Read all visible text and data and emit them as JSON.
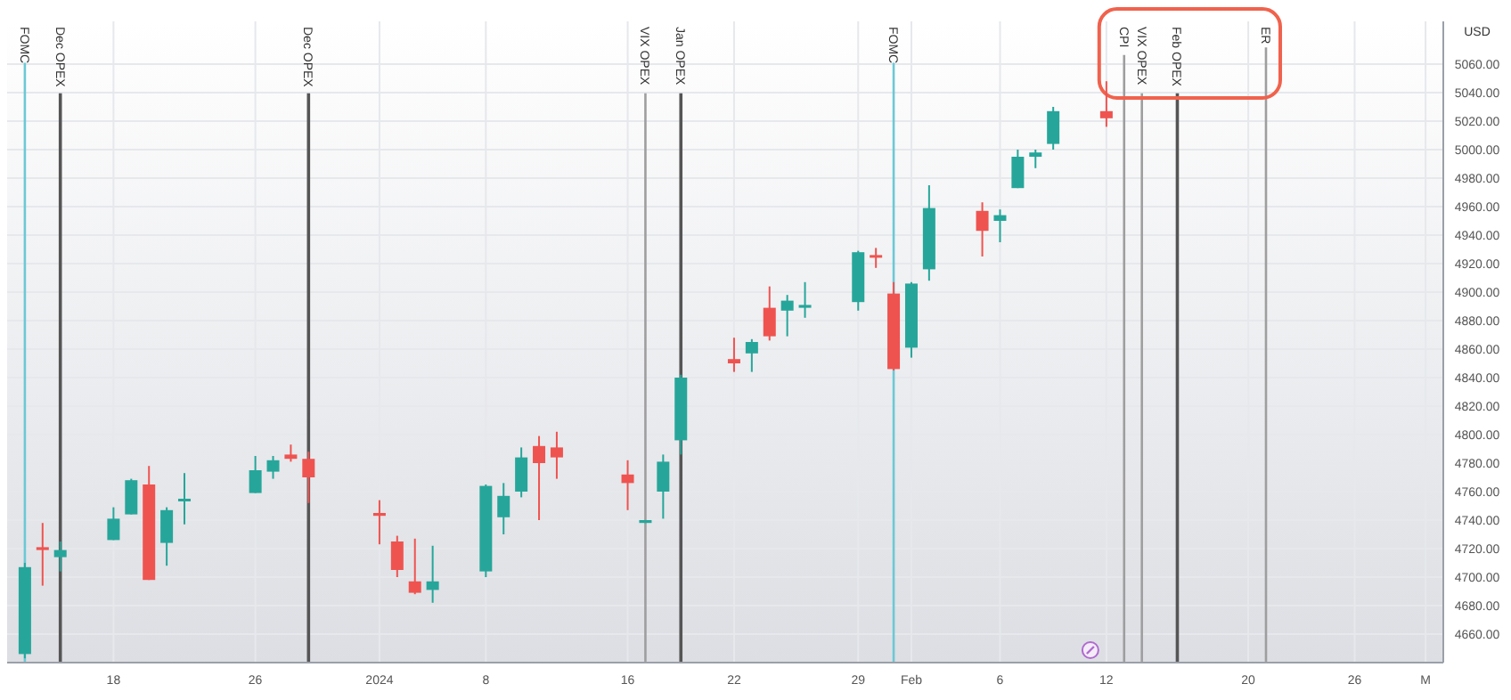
{
  "chart_data": {
    "type": "candlestick",
    "ylabel": "USD",
    "x": [
      "2023-12-13",
      "2023-12-14",
      "2023-12-15",
      "2023-12-18",
      "2023-12-19",
      "2023-12-20",
      "2023-12-21",
      "2023-12-22",
      "2023-12-26",
      "2023-12-27",
      "2023-12-28",
      "2023-12-29",
      "2024-01-02",
      "2024-01-03",
      "2024-01-04",
      "2024-01-05",
      "2024-01-08",
      "2024-01-09",
      "2024-01-10",
      "2024-01-11",
      "2024-01-12",
      "2024-01-16",
      "2024-01-17",
      "2024-01-18",
      "2024-01-19",
      "2024-01-22",
      "2024-01-23",
      "2024-01-24",
      "2024-01-25",
      "2024-01-26",
      "2024-01-29",
      "2024-01-30",
      "2024-01-31",
      "2024-02-01",
      "2024-02-02",
      "2024-02-05",
      "2024-02-06",
      "2024-02-07",
      "2024-02-08",
      "2024-02-09",
      "2024-02-12"
    ],
    "ohlc": [
      [
        4646,
        4710,
        4643,
        4707
      ],
      [
        4721,
        4738,
        4694,
        4719
      ],
      [
        4714,
        4725,
        4704,
        4719
      ],
      [
        4726,
        4749,
        4726,
        4741
      ],
      [
        4744,
        4769,
        4744,
        4768
      ],
      [
        4765,
        4778,
        4698,
        4698
      ],
      [
        4724,
        4749,
        4708,
        4747
      ],
      [
        4754,
        4773,
        4737,
        4755
      ],
      [
        4759,
        4785,
        4759,
        4775
      ],
      [
        4774,
        4785,
        4769,
        4782
      ],
      [
        4786,
        4793,
        4781,
        4783
      ],
      [
        4783,
        4788,
        4752,
        4770
      ],
      [
        4745,
        4754,
        4723,
        4743
      ],
      [
        4725,
        4729,
        4700,
        4705
      ],
      [
        4697,
        4727,
        4688,
        4689
      ],
      [
        4691,
        4722,
        4682,
        4697
      ],
      [
        4704,
        4765,
        4700,
        4764
      ],
      [
        4742,
        4766,
        4730,
        4757
      ],
      [
        4760,
        4791,
        4756,
        4784
      ],
      [
        4792,
        4799,
        4740,
        4780
      ],
      [
        4791,
        4802,
        4769,
        4784
      ],
      [
        4772,
        4782,
        4747,
        4766
      ],
      [
        4738,
        4740,
        4738,
        4740
      ],
      [
        4760,
        4786,
        4741,
        4781
      ],
      [
        4796,
        4842,
        4786,
        4840
      ],
      [
        4853,
        4868,
        4844,
        4850
      ],
      [
        4857,
        4867,
        4844,
        4865
      ],
      [
        4889,
        4904,
        4866,
        4869
      ],
      [
        4887,
        4898,
        4869,
        4894
      ],
      [
        4889,
        4907,
        4882,
        4891
      ],
      [
        4893,
        4929,
        4887,
        4928
      ],
      [
        4926,
        4931,
        4917,
        4925
      ],
      [
        4899,
        4907,
        4845,
        4846
      ],
      [
        4861,
        4907,
        4854,
        4906
      ],
      [
        4916,
        4975,
        4908,
        4959
      ],
      [
        4957,
        4963,
        4925,
        4943
      ],
      [
        4950,
        4958,
        4935,
        4954
      ],
      [
        4973,
        5000,
        4973,
        4995
      ],
      [
        4995,
        5000,
        4987,
        4998
      ],
      [
        5004,
        5030,
        5000,
        5027
      ],
      [
        5027,
        5048,
        5016,
        5022
      ]
    ],
    "colors": [
      "#26a69a",
      "#ef5350",
      "#26a69a",
      "#26a69a",
      "#26a69a",
      "#ef5350",
      "#26a69a",
      "#26a69a",
      "#26a69a",
      "#26a69a",
      "#ef5350",
      "#ef5350",
      "#ef5350",
      "#ef5350",
      "#ef5350",
      "#26a69a",
      "#26a69a",
      "#26a69a",
      "#26a69a",
      "#ef5350",
      "#ef5350",
      "#ef5350",
      "#26a69a",
      "#26a69a",
      "#26a69a",
      "#ef5350",
      "#26a69a",
      "#ef5350",
      "#26a69a",
      "#26a69a",
      "#26a69a",
      "#ef5350",
      "#ef5350",
      "#26a69a",
      "#26a69a",
      "#ef5350",
      "#26a69a",
      "#26a69a",
      "#26a69a",
      "#26a69a",
      "#ef5350"
    ],
    "xlim": [
      "2023-12-12",
      "2024-03-02"
    ],
    "ylim": [
      4640,
      5090
    ],
    "yticks": [
      {
        "value": 4660,
        "label": "4660.00"
      },
      {
        "value": 4680,
        "label": "4680.00"
      },
      {
        "value": 4700,
        "label": "4700.00"
      },
      {
        "value": 4720,
        "label": "4720.00"
      },
      {
        "value": 4740,
        "label": "4740.00"
      },
      {
        "value": 4760,
        "label": "4760.00"
      },
      {
        "value": 4780,
        "label": "4780.00"
      },
      {
        "value": 4800,
        "label": "4800.00"
      },
      {
        "value": 4820,
        "label": "4820.00"
      },
      {
        "value": 4840,
        "label": "4840.00"
      },
      {
        "value": 4860,
        "label": "4860.00"
      },
      {
        "value": 4880,
        "label": "4880.00"
      },
      {
        "value": 4900,
        "label": "4900.00"
      },
      {
        "value": 4920,
        "label": "4920.00"
      },
      {
        "value": 4940,
        "label": "4940.00"
      },
      {
        "value": 4960,
        "label": "4960.00"
      },
      {
        "value": 4980,
        "label": "4980.00"
      },
      {
        "value": 5000,
        "label": "5000.00"
      },
      {
        "value": 5020,
        "label": "5020.00"
      },
      {
        "value": 5040,
        "label": "5040.00"
      },
      {
        "value": 5060,
        "label": "5060.00"
      }
    ],
    "xticks": [
      {
        "value": "2023-12-18",
        "label": "18"
      },
      {
        "value": "2023-12-26",
        "label": "26"
      },
      {
        "value": "2024-01-02",
        "label": "2024"
      },
      {
        "value": "2024-01-08",
        "label": "8"
      },
      {
        "value": "2024-01-16",
        "label": "16"
      },
      {
        "value": "2024-01-22",
        "label": "22"
      },
      {
        "value": "2024-01-29",
        "label": "29"
      },
      {
        "value": "2024-02-01",
        "label": "Feb"
      },
      {
        "value": "2024-02-06",
        "label": "6"
      },
      {
        "value": "2024-02-12",
        "label": "12"
      },
      {
        "value": "2024-02-20",
        "label": "20"
      },
      {
        "value": "2024-02-26",
        "label": "26"
      },
      {
        "value": "2024-03-01",
        "label": "M"
      }
    ],
    "grid": true,
    "ref_lines": [
      {
        "axis": "x",
        "value": "2023-12-13",
        "label": "FOMC",
        "color": "#6cc8d6"
      },
      {
        "axis": "x",
        "value": "2023-12-15",
        "label": "Dec OPEX",
        "color": "#555555"
      },
      {
        "axis": "x",
        "value": "2023-12-29",
        "label": "Dec OPEX",
        "color": "#555555"
      },
      {
        "axis": "x",
        "value": "2024-01-17",
        "label": "VIX OPEX",
        "color": "#9e9e9e"
      },
      {
        "axis": "x",
        "value": "2024-01-19",
        "label": "Jan OPEX",
        "color": "#555555"
      },
      {
        "axis": "x",
        "value": "2024-01-31",
        "label": "FOMC",
        "color": "#6cc8d6"
      },
      {
        "axis": "x",
        "value": "2024-02-13",
        "label": "CPI",
        "color": "#9e9e9e"
      },
      {
        "axis": "x",
        "value": "2024-02-14",
        "label": "VIX OPEX",
        "color": "#9e9e9e"
      },
      {
        "axis": "x",
        "value": "2024-02-16",
        "label": "Feb OPEX",
        "color": "#555555"
      },
      {
        "axis": "x",
        "value": "2024-02-21",
        "label": "ER",
        "color": "#9e9e9e"
      }
    ]
  }
}
